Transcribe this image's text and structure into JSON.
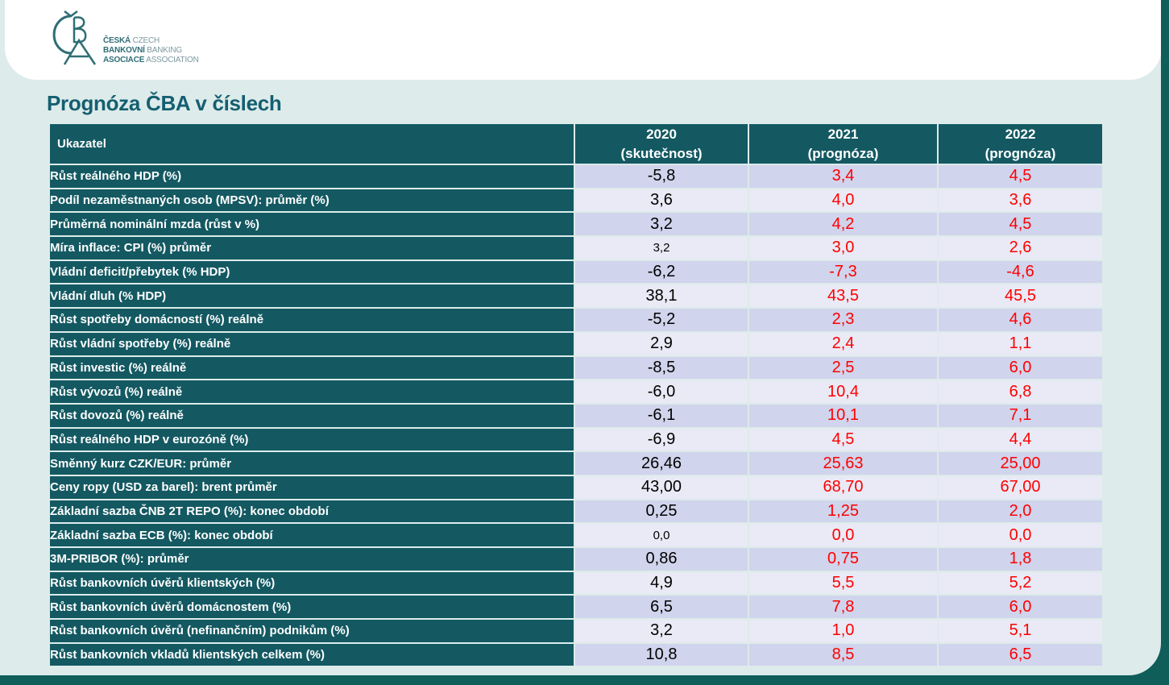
{
  "logo": {
    "line1_cz": "ČESKÁ",
    "line1_en": "CZECH",
    "line2_cz": "BANKOVNÍ",
    "line2_en": "BANKING",
    "line3_cz": "ASOCIACE",
    "line3_en": "ASSOCIATION"
  },
  "title": "Prognóza ČBA v číslech",
  "colors": {
    "header_bg": "#145962",
    "forecast_text": "#ff0000",
    "row_odd": "#d0d4ec",
    "row_even": "#e9eaf5"
  },
  "table": {
    "headers": {
      "indicator": "Ukazatel",
      "y2020": "2020",
      "y2020_sub": "(skutečnost)",
      "y2021": "2021",
      "y2021_sub": "(prognóza)",
      "y2022": "2022",
      "y2022_sub": "(prognóza)"
    },
    "rows": [
      {
        "label": "Růst reálného HDP (%)",
        "v2020": "-5,8",
        "v2021": "3,4",
        "v2022": "4,5"
      },
      {
        "label": "Podíl nezaměstnaných osob (MPSV): průměr (%)",
        "v2020": "3,6",
        "v2021": "4,0",
        "v2022": "3,6"
      },
      {
        "label": "Průměrná nominální mzda (růst v %)",
        "v2020": "3,2",
        "v2021": "4,2",
        "v2022": "4,5"
      },
      {
        "label": "Míra inflace: CPI (%) průměr",
        "v2020": "3,2",
        "v2021": "3,0",
        "v2022": "2,6"
      },
      {
        "label": "Vládní deficit/přebytek (% HDP)",
        "v2020": "-6,2",
        "v2021": "-7,3",
        "v2022": "-4,6"
      },
      {
        "label": "Vládní dluh (% HDP)",
        "v2020": "38,1",
        "v2021": "43,5",
        "v2022": "45,5"
      },
      {
        "label": "Růst spotřeby domácností (%) reálně",
        "v2020": "-5,2",
        "v2021": "2,3",
        "v2022": "4,6"
      },
      {
        "label": "Růst vládní spotřeby (%) reálně",
        "v2020": "2,9",
        "v2021": "2,4",
        "v2022": "1,1"
      },
      {
        "label": "Růst investic (%) reálně",
        "v2020": "-8,5",
        "v2021": "2,5",
        "v2022": "6,0"
      },
      {
        "label": "Růst vývozů (%) reálně",
        "v2020": "-6,0",
        "v2021": "10,4",
        "v2022": "6,8"
      },
      {
        "label": "Růst dovozů (%) reálně",
        "v2020": "-6,1",
        "v2021": "10,1",
        "v2022": "7,1"
      },
      {
        "label": "Růst reálného HDP v eurozóně (%)",
        "v2020": "-6,9",
        "v2021": "4,5",
        "v2022": "4,4"
      },
      {
        "label": "Směnný kurz CZK/EUR: průměr",
        "v2020": "26,46",
        "v2021": "25,63",
        "v2022": "25,00"
      },
      {
        "label": "Ceny ropy (USD za barel): brent průměr",
        "v2020": "43,00",
        "v2021": "68,70",
        "v2022": "67,00"
      },
      {
        "label": "Základní sazba ČNB 2T REPO (%): konec období",
        "v2020": "0,25",
        "v2021": "1,25",
        "v2022": "2,0"
      },
      {
        "label": "Základní sazba ECB (%): konec období",
        "v2020": "0,0",
        "v2021": "0,0",
        "v2022": "0,0"
      },
      {
        "label": "3M-PRIBOR (%): průměr",
        "v2020": "0,86",
        "v2021": "0,75",
        "v2022": "1,8"
      },
      {
        "label": "Růst bankovních úvěrů klientských (%)",
        "v2020": "4,9",
        "v2021": "5,5",
        "v2022": "5,2"
      },
      {
        "label": "Růst bankovních úvěrů domácnostem (%)",
        "v2020": "6,5",
        "v2021": "7,8",
        "v2022": "6,0"
      },
      {
        "label": "Růst bankovních úvěrů (nefinančním) podnikům (%)",
        "v2020": "3,2",
        "v2021": "1,0",
        "v2022": "5,1"
      },
      {
        "label": "Růst bankovních vkladů klientských celkem (%)",
        "v2020": "10,8",
        "v2021": "8,5",
        "v2022": "6,5"
      }
    ]
  }
}
